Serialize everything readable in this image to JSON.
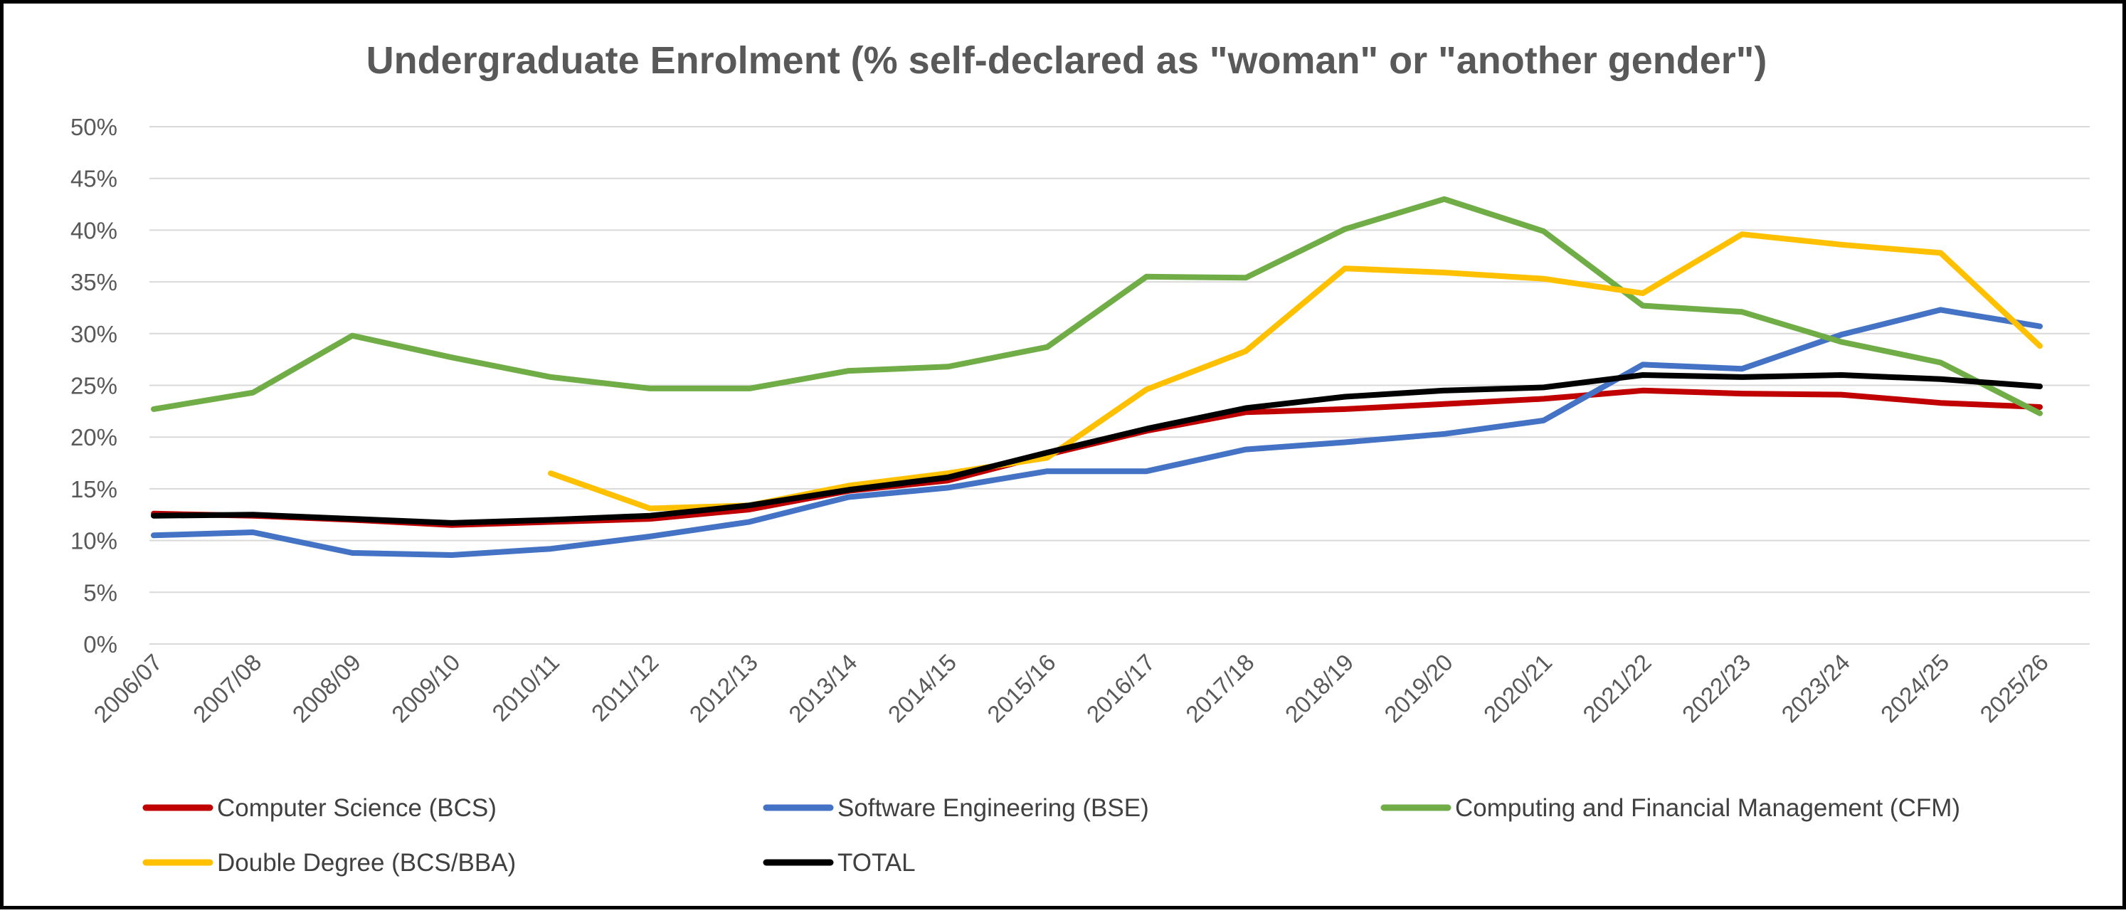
{
  "chart_data": {
    "type": "line",
    "title": "Undergraduate Enrolment (% self-declared as \"woman\" or \"another gender\")",
    "xlabel": "",
    "ylabel": "",
    "ylim": [
      0,
      50
    ],
    "y_ticks": [
      "0%",
      "5%",
      "10%",
      "15%",
      "20%",
      "25%",
      "30%",
      "35%",
      "40%",
      "45%",
      "50%"
    ],
    "grid": true,
    "legend_position": "bottom",
    "categories": [
      "2006/07",
      "2007/08",
      "2008/09",
      "2009/10",
      "2010/11",
      "2011/12",
      "2012/13",
      "2013/14",
      "2014/15",
      "2015/16",
      "2016/17",
      "2017/18",
      "2018/19",
      "2019/20",
      "2020/21",
      "2021/22",
      "2022/23",
      "2023/24",
      "2024/25",
      "2025/26"
    ],
    "series": [
      {
        "name": "Computer Science (BCS)",
        "color": "#c00000",
        "values": [
          12.6,
          12.4,
          12.0,
          11.5,
          11.8,
          12.1,
          13.0,
          14.8,
          15.8,
          18.3,
          20.6,
          22.4,
          22.7,
          23.2,
          23.7,
          24.5,
          24.2,
          24.1,
          23.3,
          22.9
        ]
      },
      {
        "name": "Software Engineering (BSE)",
        "color": "#4472c4",
        "values": [
          10.5,
          10.8,
          8.8,
          8.6,
          9.2,
          10.4,
          11.8,
          14.2,
          15.1,
          16.7,
          16.7,
          18.8,
          19.5,
          20.3,
          21.6,
          27.0,
          26.6,
          29.9,
          32.3,
          30.7
        ]
      },
      {
        "name": "Computing and Financial Management (CFM)",
        "color": "#70ad47",
        "values": [
          22.7,
          24.3,
          29.8,
          27.7,
          25.8,
          24.7,
          24.7,
          26.4,
          26.8,
          28.7,
          35.5,
          35.4,
          40.1,
          43.0,
          39.9,
          32.7,
          32.1,
          29.2,
          27.2,
          22.3
        ]
      },
      {
        "name": "Double Degree (BCS/BBA)",
        "color": "#ffc000",
        "values": [
          null,
          null,
          null,
          null,
          16.5,
          13.1,
          13.4,
          15.3,
          16.5,
          18.0,
          24.6,
          28.3,
          36.3,
          35.9,
          35.3,
          33.9,
          39.6,
          38.6,
          37.8,
          28.8
        ]
      },
      {
        "name": "TOTAL",
        "color": "#000000",
        "values": [
          12.4,
          12.5,
          12.1,
          11.7,
          12.0,
          12.4,
          13.4,
          14.9,
          16.1,
          18.5,
          20.8,
          22.8,
          23.9,
          24.5,
          24.8,
          26.0,
          25.8,
          26.0,
          25.6,
          24.9
        ]
      }
    ]
  }
}
